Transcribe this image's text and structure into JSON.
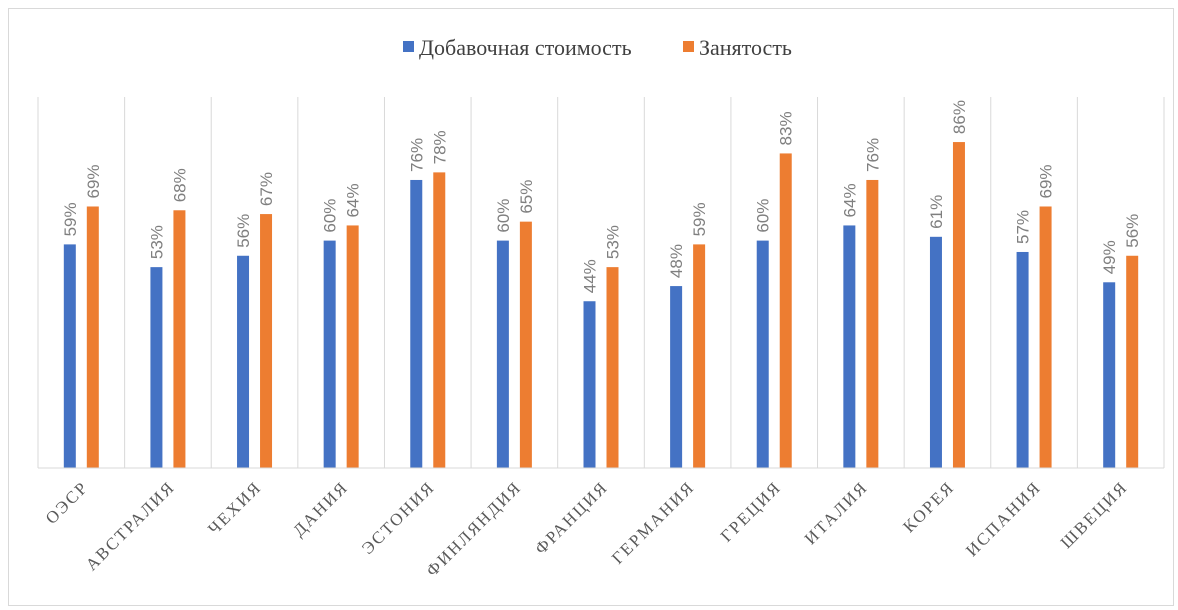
{
  "chart_data": {
    "type": "bar",
    "title": "",
    "xlabel": "",
    "ylabel": "",
    "ylim": [
      0,
      100
    ],
    "grid": "vertical category separators",
    "legend_position": "top",
    "value_format": "percent",
    "categories": [
      "ОЭСР",
      "АВСТРАЛИЯ",
      "ЧЕХИЯ",
      "ДАНИЯ",
      "ЭСТОНИЯ",
      "ФИНЛЯНДИЯ",
      "ФРАНЦИЯ",
      "ГЕРМАНИЯ",
      "ГРЕЦИЯ",
      "ИТАЛИЯ",
      "КОРЕЯ",
      "ИСПАНИЯ",
      "ШВЕЦИЯ"
    ],
    "series": [
      {
        "name": "Добавочная стоимость",
        "color": "#4472c4",
        "values": [
          59,
          53,
          56,
          60,
          76,
          60,
          44,
          48,
          60,
          64,
          61,
          57,
          49
        ]
      },
      {
        "name": "Занятость",
        "color": "#ed7d31",
        "values": [
          69,
          68,
          67,
          64,
          78,
          65,
          53,
          59,
          83,
          76,
          86,
          69,
          56
        ]
      }
    ]
  }
}
